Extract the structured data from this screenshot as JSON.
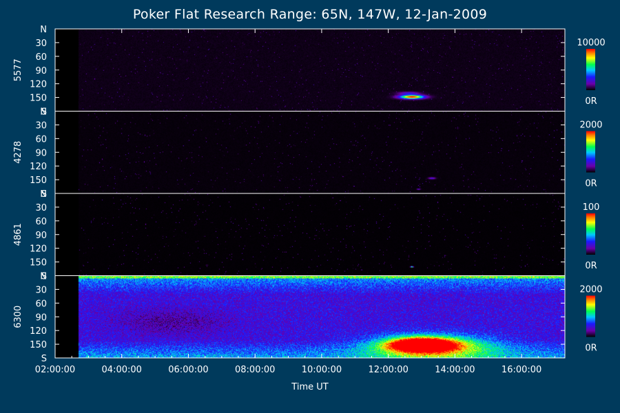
{
  "chart_data": {
    "type": "heatmap",
    "title": "Poker Flat Research Range: 65N, 147W, 12-Jan-2009",
    "xlabel": "Time UT",
    "x_range_hours": [
      2.0,
      17.3
    ],
    "x_ticks": [
      {
        "hour": 2,
        "label": "02:00:00"
      },
      {
        "hour": 4,
        "label": "04:00:00"
      },
      {
        "hour": 6,
        "label": "06:00:00"
      },
      {
        "hour": 8,
        "label": "08:00:00"
      },
      {
        "hour": 10,
        "label": "10:00:00"
      },
      {
        "hour": 12,
        "label": "12:00:00"
      },
      {
        "hour": 14,
        "label": "14:00:00"
      },
      {
        "hour": 16,
        "label": "16:00:00"
      }
    ],
    "y_range_deg": [
      0,
      180
    ],
    "y_ticks": [
      {
        "deg": 0,
        "label": "N"
      },
      {
        "deg": 30,
        "label": "30"
      },
      {
        "deg": 60,
        "label": "60"
      },
      {
        "deg": 90,
        "label": "90"
      },
      {
        "deg": 120,
        "label": "120"
      },
      {
        "deg": 150,
        "label": "150"
      },
      {
        "deg": 180,
        "label": "S"
      }
    ],
    "data_start_hour": 2.7,
    "panels": [
      {
        "name": "5577",
        "scale_max": "10000",
        "scale_min": "0R",
        "features": [
          {
            "hour": 12.7,
            "deg": 148,
            "intensity": 1.0,
            "spread_h": 0.35,
            "spread_deg": 4
          },
          {
            "hour": 12.6,
            "deg": 140,
            "intensity": 0.25,
            "spread_h": 0.3,
            "spread_deg": 3
          }
        ],
        "background": 0.02
      },
      {
        "name": "4278",
        "scale_max": "2000",
        "scale_min": "0R",
        "features": [
          {
            "hour": 13.3,
            "deg": 146,
            "intensity": 0.25,
            "spread_h": 0.1,
            "spread_deg": 2
          },
          {
            "hour": 12.9,
            "deg": 170,
            "intensity": 0.3,
            "spread_h": 0.05,
            "spread_deg": 1
          }
        ],
        "background": 0.01
      },
      {
        "name": "4861",
        "scale_max": "100",
        "scale_min": "0R",
        "features": [
          {
            "hour": 12.7,
            "deg": 160,
            "intensity": 0.9,
            "spread_h": 0.04,
            "spread_deg": 1
          }
        ],
        "background": 0.005
      },
      {
        "name": "6300",
        "scale_max": "2000",
        "scale_min": "0R",
        "features": [
          {
            "hour": 13.0,
            "deg": 150,
            "intensity": 1.0,
            "spread_h": 0.9,
            "spread_deg": 14
          },
          {
            "hour": 13.3,
            "deg": 155,
            "intensity": 0.55,
            "spread_h": 1.8,
            "spread_deg": 25
          }
        ],
        "background": 0.25
      }
    ]
  }
}
